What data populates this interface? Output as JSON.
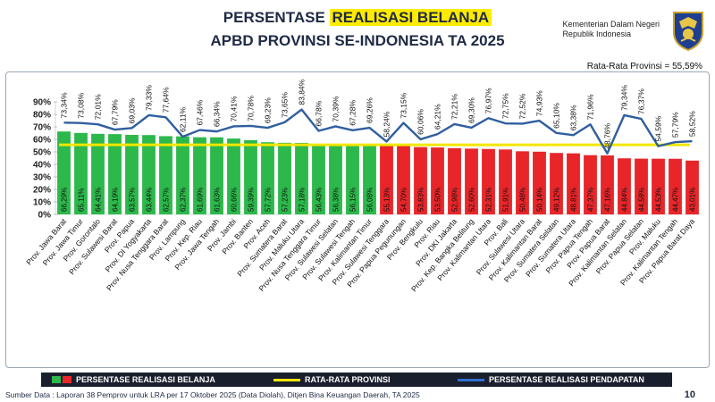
{
  "header": {
    "title_pre": "PERSENTASE ",
    "title_highlight": "REALISASI BELANJA",
    "subtitle": "APBD PROVINSI SE-INDONESIA TA 2025",
    "ministry_line1": "Kementerian Dalam Negeri",
    "ministry_line2": "Republik Indonesia",
    "average_label": "Rata-Rata Provinsi = 55,59%"
  },
  "legend": {
    "belanja": "PERSENTASE REALISASI BELANJA",
    "rata": "RATA-RATA PROVINSI",
    "pendapatan": "PERSENTASE REALISASI PENDAPATAN"
  },
  "footer": {
    "source": "Sumber Data : Laporan 38 Pemprov untuk LRA per 17 Oktober 2025 (Data Diolah), Ditjen Bina Keuangan Daerah, TA 2025",
    "page_number": "10"
  },
  "colors": {
    "above": "#2db84b",
    "below": "#e8262a",
    "line": "#2f5f9e",
    "average": "#f2e600",
    "title": "#1f2a44"
  },
  "chart_data": {
    "type": "bar",
    "ylim": [
      0,
      90
    ],
    "yticks": [
      "0%",
      "10%",
      "20%",
      "30%",
      "40%",
      "50%",
      "60%",
      "70%",
      "80%",
      "90%"
    ],
    "average": 55.59,
    "categories": [
      "Prov. Jawa Barat",
      "Prov. Jawa Timur",
      "Prov. Gorontalo",
      "Prov. Sulawesi Barat",
      "Prov. Papua",
      "Prov. DI Yogyakarta",
      "Prov. Nusa Tenggara Barat",
      "Prov. Lampung",
      "Prov. Kep. Riau",
      "Prov. Jawa Tengah",
      "Prov. Jambi",
      "Prov. Banten",
      "Prov. Aceh",
      "Prov. Sumatera Barat",
      "Prov. Maluku Utara",
      "Prov. Nusa Tenggara Timur",
      "Prov. Sulawesi Selatan",
      "Prov. Sulawesi Tengah",
      "Prov. Kalimantan Timur",
      "Prov. Sulawesi Tenggara",
      "Prov. Papua Pegunungan",
      "Prov. Bengkulu",
      "Prov. Riau",
      "Prov. DKI Jakarta",
      "Prov. Kep. Bangka Belitung",
      "Prov. Kalimantan Utara",
      "Prov. Bali",
      "Prov. Sulawesi Utara",
      "Prov. Kalimantan Barat",
      "Prov. Sumatera Selatan",
      "Prov. Sumatera Utara",
      "Prov. Papua Tengah",
      "Prov. Papua Barat",
      "Prov. Kalimantan Selatan",
      "Prov. Papua Selatan",
      "Prov. Maluku",
      "Prov. Kalimantan Tengah",
      "Prov. Papua Barat Daya"
    ],
    "series": [
      {
        "name": "PERSENTASE REALISASI BELANJA",
        "values": [
          66.29,
          65.11,
          64.41,
          64.19,
          63.57,
          63.44,
          62.57,
          62.37,
          61.69,
          61.63,
          60.66,
          59.39,
          57.72,
          57.23,
          57.18,
          56.43,
          56.38,
          56.15,
          56.08,
          55.13,
          54.7,
          53.83,
          53.5,
          52.98,
          52.6,
          52.31,
          51.91,
          50.48,
          50.14,
          49.12,
          48.81,
          47.37,
          47.16,
          44.84,
          44.58,
          44.53,
          44.47,
          43.01
        ],
        "labels": [
          "66,29%",
          "65,11%",
          "64,41%",
          "64,19%",
          "63,57%",
          "63,44%",
          "62,57%",
          "62,37%",
          "61,69%",
          "61,63%",
          "60,66%",
          "59,39%",
          "57,72%",
          "57,23%",
          "57,18%",
          "56,43%",
          "56,38%",
          "56,15%",
          "56,08%",
          "55,13%",
          "54,70%",
          "53,83%",
          "53,50%",
          "52,98%",
          "52,60%",
          "52,31%",
          "51,91%",
          "50,48%",
          "50,14%",
          "49,12%",
          "48,81%",
          "47,37%",
          "47,16%",
          "44,84%",
          "44,58%",
          "44,53%",
          "44,47%",
          "43,01%"
        ]
      },
      {
        "name": "PERSENTASE REALISASI PENDAPATAN",
        "values": [
          73.34,
          73.08,
          72.01,
          67.79,
          69.03,
          79.33,
          77.64,
          62.11,
          67.46,
          66.34,
          70.41,
          70.78,
          69.23,
          73.65,
          83.84,
          66.78,
          70.39,
          67.28,
          69.26,
          58.24,
          73.15,
          60.06,
          64.21,
          72.21,
          69.3,
          76.97,
          72.75,
          72.52,
          74.93,
          65.1,
          63.38,
          71.96,
          48.76,
          79.34,
          76.37,
          54.59,
          57.79,
          58.52
        ],
        "labels": [
          "73,34%",
          "73,08%",
          "72,01%",
          "67,79%",
          "69,03%",
          "79,33%",
          "77,64%",
          "62,11%",
          "67,46%",
          "66,34%",
          "70,41%",
          "70,78%",
          "69,23%",
          "73,65%",
          "83,84%",
          "66,78%",
          "70,39%",
          "67,28%",
          "69,26%",
          "58,24%",
          "73,15%",
          "60,06%",
          "64,21%",
          "72,21%",
          "69,30%",
          "76,97%",
          "72,75%",
          "72,52%",
          "74,93%",
          "65,10%",
          "63,38%",
          "71,96%",
          "48,76%",
          "79,34%",
          "76,37%",
          "54,59%",
          "57,79%",
          "58,52%"
        ]
      }
    ]
  }
}
